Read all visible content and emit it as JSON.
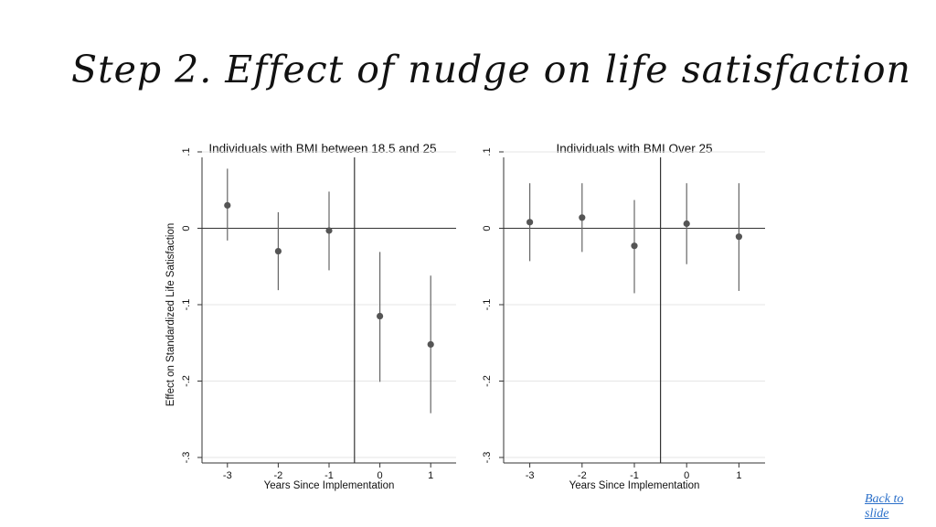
{
  "slide": {
    "title": "Step 2. Effect of nudge on life satisfaction",
    "back_link": "Back to slide"
  },
  "chart_data": [
    {
      "type": "scatter",
      "style": "point estimates with confidence intervals",
      "title": "Individuals with BMI between 18.5 and 25",
      "xlabel": "Years Since Implementation",
      "ylabel": "Effect on Standardized Life Satisfaction",
      "x": [
        -3,
        -2,
        -1,
        0,
        1
      ],
      "y": [
        0.03,
        -0.03,
        -0.003,
        -0.115,
        -0.152
      ],
      "ci_low": [
        -0.016,
        -0.081,
        -0.055,
        -0.201,
        -0.242
      ],
      "ci_high": [
        0.078,
        0.021,
        0.048,
        -0.031,
        -0.062
      ],
      "x_ticks": [
        "-3",
        "-2",
        "-1",
        "0",
        "1"
      ],
      "y_ticks": [
        "-.3",
        "-.2",
        "-.1",
        "0",
        ".1"
      ],
      "ylim": [
        -0.3,
        0.1
      ],
      "xlim": [
        -3.5,
        1.5
      ],
      "grid": true,
      "reference_lines": {
        "y": 0,
        "x": -0.5
      },
      "marker_color": "#555555"
    },
    {
      "type": "scatter",
      "style": "point estimates with confidence intervals",
      "title": "Individuals with BMI Over 25",
      "xlabel": "Years Since Implementation",
      "ylabel": "",
      "x": [
        -3,
        -2,
        -1,
        0,
        1
      ],
      "y": [
        0.008,
        0.014,
        -0.023,
        0.006,
        -0.011
      ],
      "ci_low": [
        -0.043,
        -0.031,
        -0.085,
        -0.047,
        -0.082
      ],
      "ci_high": [
        0.059,
        0.059,
        0.037,
        0.059,
        0.059
      ],
      "x_ticks": [
        "-3",
        "-2",
        "-1",
        "0",
        "1"
      ],
      "y_ticks": [
        "-.3",
        "-.2",
        "-.1",
        "0",
        ".1"
      ],
      "ylim": [
        -0.3,
        0.1
      ],
      "xlim": [
        -3.5,
        1.5
      ],
      "grid": true,
      "reference_lines": {
        "y": 0,
        "x": -0.5
      },
      "marker_color": "#555555"
    }
  ]
}
